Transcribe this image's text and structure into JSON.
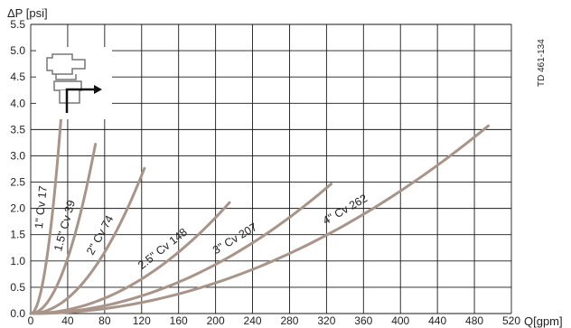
{
  "chart_data": {
    "type": "line",
    "ylabel": "ΔP [psi]",
    "xlabel": "Q[gpm]",
    "xlim": [
      0,
      520
    ],
    "ylim": [
      0,
      5.5
    ],
    "x_ticks": [
      0,
      40,
      80,
      120,
      160,
      200,
      240,
      280,
      320,
      360,
      400,
      440,
      480,
      520
    ],
    "y_ticks": [
      "0.0",
      "0.5",
      "1.0",
      "1.5",
      "2.0",
      "2.5",
      "3.0",
      "3.5",
      "4.0",
      "4.5",
      "5.0",
      "5.5"
    ],
    "grid": true,
    "document_code": "TD 461-134",
    "icon": "valve-schematic-icon",
    "curve_color": "#a89489",
    "series": [
      {
        "name": "1\"   Cv 17",
        "size": "1\"",
        "cv": 17,
        "x_max": 34
      },
      {
        "name": "1.5\"  Cv 39",
        "size": "1.5\"",
        "cv": 39,
        "x_max": 70
      },
      {
        "name": "2\"  Cv 74",
        "size": "2\"",
        "cv": 74,
        "x_max": 123
      },
      {
        "name": "2.5\"  Cv 148",
        "size": "2.5\"",
        "cv": 148,
        "x_max": 215
      },
      {
        "name": "3\"  Cv 207",
        "size": "3\"",
        "cv": 207,
        "x_max": 325
      },
      {
        "name": "4\"  Cv 262",
        "size": "4\"",
        "cv": 262,
        "x_max": 495
      }
    ]
  }
}
